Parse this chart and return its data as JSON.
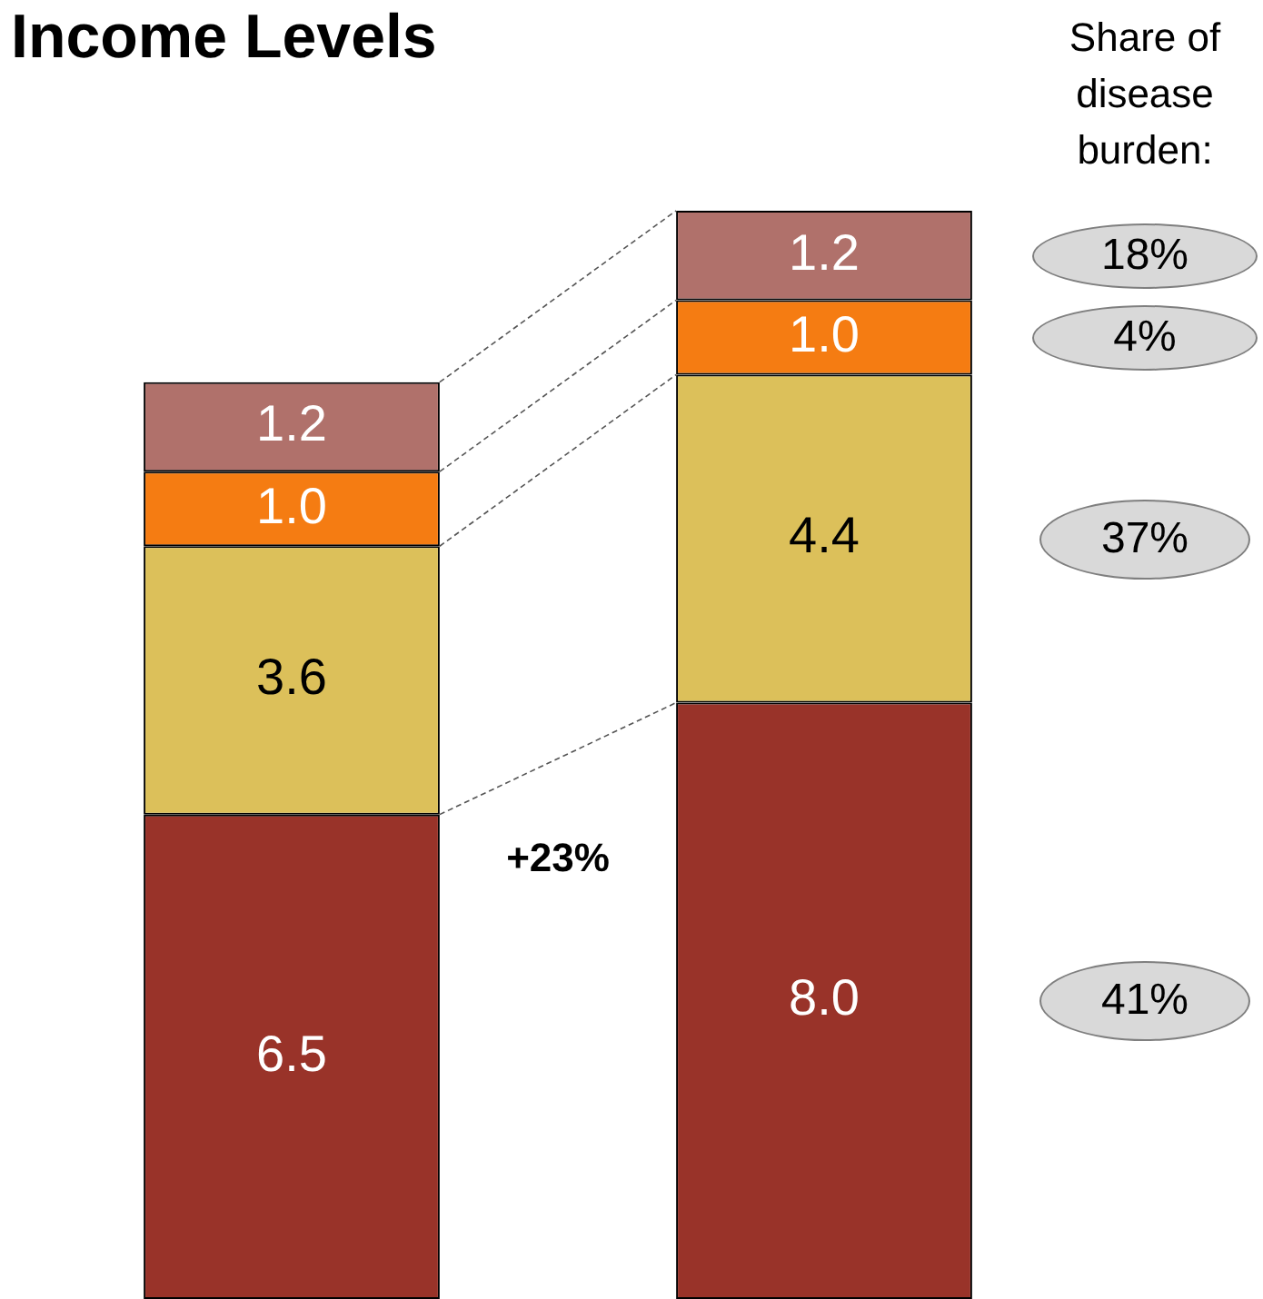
{
  "chart_data": {
    "type": "bar",
    "title": "Income Levels",
    "categories": [
      null,
      null
    ],
    "stacked": true,
    "legend": false,
    "tick_labels": false,
    "series": [
      {
        "color": "#993329",
        "values": [
          6.5,
          8.0
        ],
        "value_labels": [
          "6.5",
          "8.0"
        ]
      },
      {
        "color": "#dcc05a",
        "values": [
          3.6,
          4.4
        ],
        "value_labels": [
          "3.6",
          "4.4"
        ]
      },
      {
        "color": "#f57c12",
        "values": [
          1.0,
          1.0
        ],
        "value_labels": [
          "1.0",
          "1.0"
        ]
      },
      {
        "color": "#b0716b",
        "values": [
          1.2,
          1.2
        ],
        "value_labels": [
          "1.2",
          "1.2"
        ]
      }
    ],
    "annotations": [
      "Share of disease burden:",
      "+23%",
      "18%",
      "4%",
      "37%",
      "41%"
    ]
  }
}
